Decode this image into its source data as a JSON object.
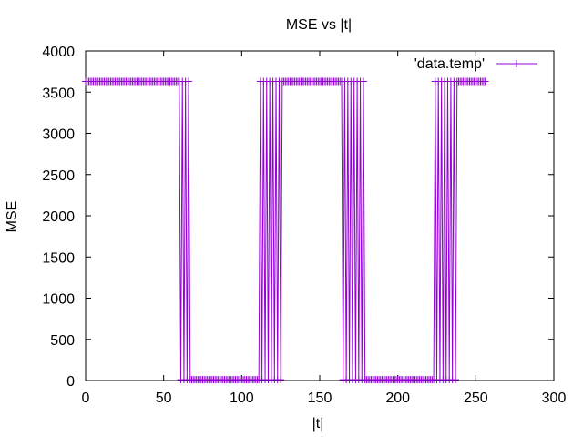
{
  "chart_data": {
    "type": "line",
    "title": "MSE vs |t|",
    "xlabel": "|t|",
    "ylabel": "MSE",
    "xlim": [
      0,
      300
    ],
    "ylim": [
      0,
      4000
    ],
    "xticks": [
      0,
      50,
      100,
      150,
      200,
      250,
      300
    ],
    "yticks": [
      0,
      500,
      1000,
      1500,
      2000,
      2500,
      3000,
      3500,
      4000
    ],
    "xtick_labels": [
      "0",
      "50",
      "100",
      "150",
      "200",
      "250",
      "300"
    ],
    "ytick_labels": [
      "0",
      "500",
      "1000",
      "1500",
      "2000",
      "2500",
      "3000",
      "3500",
      "4000"
    ],
    "grid": false,
    "legend_position": "top-right",
    "series": [
      {
        "name": "'data.temp'",
        "color": "#9400d3",
        "high_value": 3630,
        "low_value": 10,
        "x_start": 0,
        "x_end": 256,
        "pattern": [
          {
            "x_range": [
              0,
              60
            ],
            "level": "high"
          },
          {
            "x_range": [
              60,
              68
            ],
            "level": "alternating"
          },
          {
            "x_range": [
              68,
              111
            ],
            "level": "low"
          },
          {
            "x_range": [
              111,
              126
            ],
            "level": "alternating"
          },
          {
            "x_range": [
              126,
              165
            ],
            "level": "high"
          },
          {
            "x_range": [
              165,
              179
            ],
            "level": "alternating"
          },
          {
            "x_range": [
              179,
              223
            ],
            "level": "low"
          },
          {
            "x_range": [
              223,
              238
            ],
            "level": "alternating"
          },
          {
            "x_range": [
              238,
              256
            ],
            "level": "high"
          }
        ]
      }
    ]
  }
}
